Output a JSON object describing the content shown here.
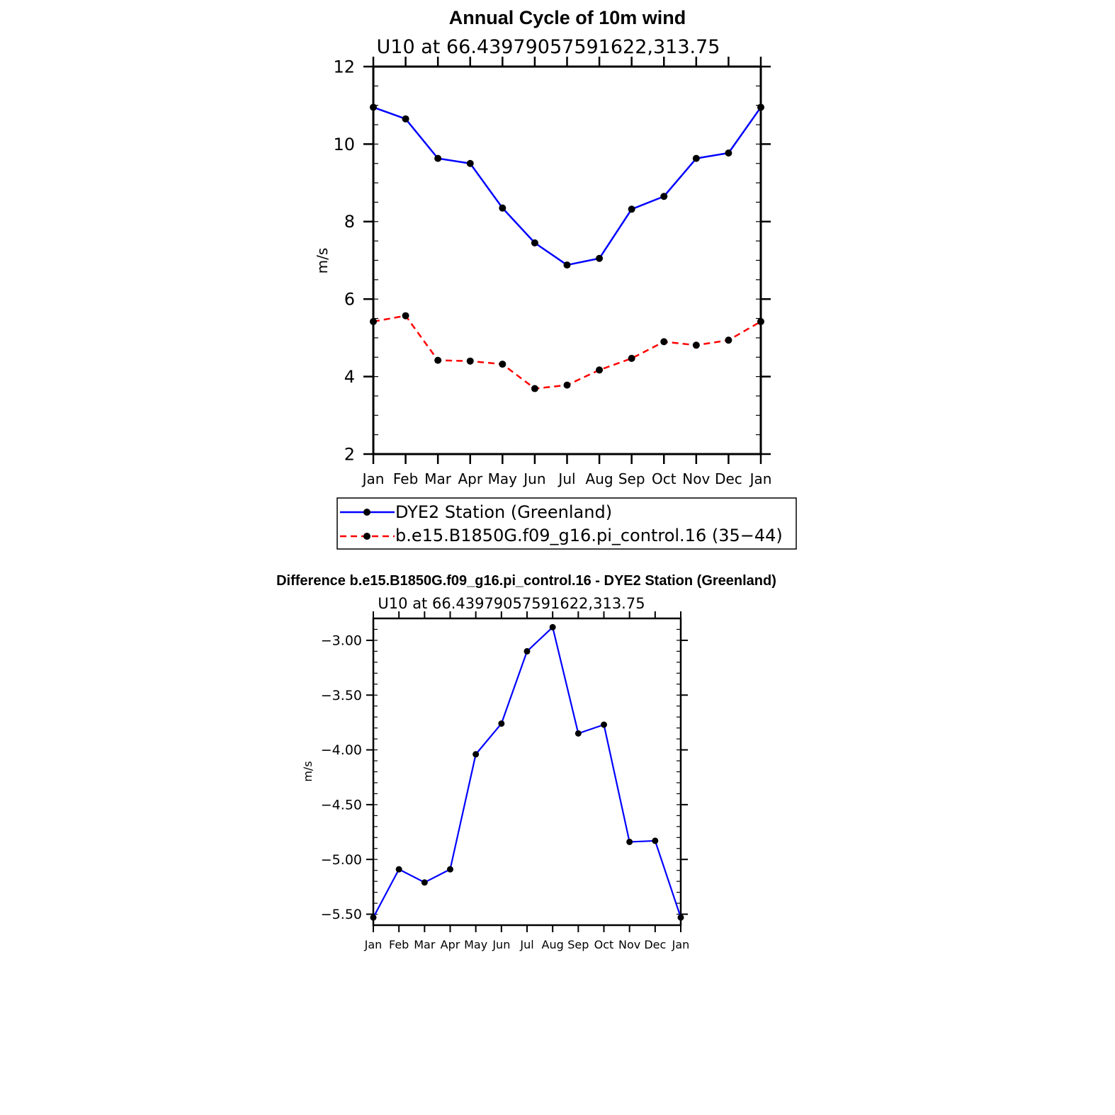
{
  "colors": {
    "obs": "#0000ff",
    "model": "#ff0000",
    "diff": "#0000ff",
    "marker": "#000000",
    "axis": "#000000"
  },
  "chart_data": [
    {
      "type": "line",
      "title": "Annual Cycle of 10m wind",
      "subtitle": "U10 at 66.43979057591622,313.75",
      "ylabel": "m/s",
      "xlabel": "",
      "categories": [
        "Jan",
        "Feb",
        "Mar",
        "Apr",
        "May",
        "Jun",
        "Jul",
        "Aug",
        "Sep",
        "Oct",
        "Nov",
        "Dec",
        "Jan"
      ],
      "ylim": [
        2,
        12
      ],
      "yticks": [
        "2",
        "4",
        "6",
        "8",
        "10",
        "12"
      ],
      "grid": false,
      "legend_position": "bottom",
      "series": [
        {
          "name": "DYE2 Station (Greenland)",
          "style": "solid",
          "values": [
            10.95,
            10.65,
            9.63,
            9.5,
            8.35,
            7.45,
            6.88,
            7.05,
            8.32,
            8.65,
            9.63,
            9.77,
            10.95
          ]
        },
        {
          "name": "b.e15.B1850G.f09_g16.pi_control.16 (35−44)",
          "style": "dashed",
          "values": [
            5.42,
            5.57,
            4.42,
            4.4,
            4.32,
            3.69,
            3.78,
            4.17,
            4.47,
            4.9,
            4.81,
            4.94,
            5.42
          ]
        }
      ]
    },
    {
      "type": "line",
      "title": "Difference b.e15.B1850G.f09_g16.pi_control.16 - DYE2 Station (Greenland)",
      "subtitle": "U10 at 66.43979057591622,313.75",
      "ylabel": "m/s",
      "xlabel": "",
      "categories": [
        "Jan",
        "Feb",
        "Mar",
        "Apr",
        "May",
        "Jun",
        "Jul",
        "Aug",
        "Sep",
        "Oct",
        "Nov",
        "Dec",
        "Jan"
      ],
      "ylim": [
        -5.6,
        -2.8
      ],
      "yticks": [
        "−3.00",
        "−3.50",
        "−4.00",
        "−4.50",
        "−5.00",
        "−5.50"
      ],
      "ytick_values": [
        -3.0,
        -3.5,
        -4.0,
        -4.5,
        -5.0,
        -5.5
      ],
      "grid": false,
      "series": [
        {
          "values": [
            -5.53,
            -5.09,
            -5.21,
            -5.09,
            -4.04,
            -3.76,
            -3.1,
            -2.88,
            -3.85,
            -3.77,
            -4.84,
            -4.83,
            -5.53
          ]
        }
      ]
    }
  ]
}
